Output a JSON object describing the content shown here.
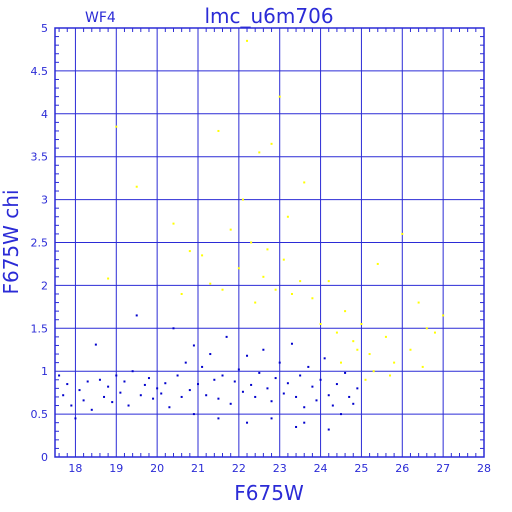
{
  "chart_data": {
    "type": "scatter",
    "title": "lmc_u6m706",
    "corner_label": "WF4",
    "xlabel": "F675W",
    "ylabel": "F675W  chi",
    "xlim": [
      17.5,
      28
    ],
    "ylim": [
      0,
      5
    ],
    "grid": true,
    "x_ticks": [
      18,
      19,
      20,
      21,
      22,
      23,
      24,
      25,
      26,
      27,
      28
    ],
    "x_tick_labels": [
      "18",
      "19",
      "20",
      "21",
      "22",
      "23",
      "24",
      "25",
      "26",
      "27",
      "28"
    ],
    "y_ticks": [
      0,
      0.5,
      1,
      1.5,
      2,
      2.5,
      3,
      3.5,
      4,
      4.5,
      5
    ],
    "y_tick_labels": [
      "0",
      "0.5",
      "1",
      "1.5",
      "2",
      "2.5",
      "3",
      "3.5",
      "4",
      "4.5",
      "5"
    ],
    "series": [
      {
        "color": "#0000cc",
        "points": [
          [
            17.6,
            0.95
          ],
          [
            17.7,
            0.72
          ],
          [
            17.8,
            0.85
          ],
          [
            17.9,
            0.6
          ],
          [
            18.0,
            0.45
          ],
          [
            18.1,
            0.78
          ],
          [
            18.2,
            0.66
          ],
          [
            18.3,
            0.88
          ],
          [
            18.4,
            0.55
          ],
          [
            18.5,
            1.31
          ],
          [
            18.6,
            0.9
          ],
          [
            18.7,
            0.7
          ],
          [
            18.8,
            0.82
          ],
          [
            18.9,
            0.64
          ],
          [
            19.0,
            0.95
          ],
          [
            19.1,
            0.75
          ],
          [
            19.2,
            0.88
          ],
          [
            19.3,
            0.6
          ],
          [
            19.4,
            1.0
          ],
          [
            19.5,
            1.65
          ],
          [
            19.6,
            0.72
          ],
          [
            19.7,
            0.84
          ],
          [
            19.8,
            0.92
          ],
          [
            19.9,
            0.68
          ],
          [
            20.0,
            0.8
          ],
          [
            20.1,
            0.74
          ],
          [
            20.2,
            0.86
          ],
          [
            20.3,
            0.58
          ],
          [
            20.4,
            1.5
          ],
          [
            20.5,
            0.95
          ],
          [
            20.6,
            0.7
          ],
          [
            20.7,
            1.1
          ],
          [
            20.8,
            0.78
          ],
          [
            20.9,
            1.3
          ],
          [
            21.0,
            0.85
          ],
          [
            21.1,
            1.05
          ],
          [
            21.2,
            0.72
          ],
          [
            21.3,
            1.2
          ],
          [
            21.4,
            0.9
          ],
          [
            21.5,
            0.68
          ],
          [
            21.6,
            0.95
          ],
          [
            21.7,
            1.4
          ],
          [
            21.8,
            0.62
          ],
          [
            21.9,
            0.88
          ],
          [
            22.0,
            1.02
          ],
          [
            22.1,
            0.76
          ],
          [
            22.2,
            1.18
          ],
          [
            22.3,
            0.84
          ],
          [
            22.4,
            0.7
          ],
          [
            22.5,
            0.98
          ],
          [
            22.6,
            1.25
          ],
          [
            22.7,
            0.8
          ],
          [
            22.8,
            0.65
          ],
          [
            22.9,
            0.92
          ],
          [
            23.0,
            1.1
          ],
          [
            23.1,
            0.74
          ],
          [
            23.2,
            0.86
          ],
          [
            23.3,
            1.32
          ],
          [
            23.4,
            0.7
          ],
          [
            23.5,
            0.95
          ],
          [
            23.6,
            0.58
          ],
          [
            23.7,
            1.05
          ],
          [
            23.8,
            0.82
          ],
          [
            23.9,
            0.66
          ],
          [
            24.0,
            0.9
          ],
          [
            24.1,
            1.15
          ],
          [
            24.2,
            0.72
          ],
          [
            24.3,
            0.6
          ],
          [
            24.4,
            0.85
          ],
          [
            24.5,
            0.5
          ],
          [
            24.6,
            0.98
          ],
          [
            24.7,
            0.7
          ],
          [
            24.8,
            0.62
          ],
          [
            24.9,
            0.8
          ],
          [
            22.2,
            0.4
          ],
          [
            23.4,
            0.35
          ],
          [
            24.2,
            0.32
          ],
          [
            21.5,
            0.45
          ],
          [
            20.9,
            0.5
          ],
          [
            22.8,
            0.45
          ],
          [
            23.6,
            0.4
          ]
        ]
      },
      {
        "color": "#ffff00",
        "points": [
          [
            18.8,
            2.08
          ],
          [
            19.0,
            3.85
          ],
          [
            19.5,
            3.15
          ],
          [
            20.4,
            2.72
          ],
          [
            20.6,
            1.9
          ],
          [
            20.8,
            2.4
          ],
          [
            21.1,
            2.35
          ],
          [
            21.3,
            2.02
          ],
          [
            21.5,
            3.8
          ],
          [
            21.6,
            1.95
          ],
          [
            21.8,
            2.65
          ],
          [
            22.0,
            2.2
          ],
          [
            22.1,
            3.0
          ],
          [
            22.2,
            4.85
          ],
          [
            22.3,
            2.5
          ],
          [
            22.4,
            1.8
          ],
          [
            22.5,
            3.55
          ],
          [
            22.6,
            2.1
          ],
          [
            22.7,
            2.42
          ],
          [
            22.8,
            3.65
          ],
          [
            22.9,
            1.95
          ],
          [
            23.0,
            4.2
          ],
          [
            23.1,
            2.3
          ],
          [
            23.2,
            2.8
          ],
          [
            23.3,
            1.9
          ],
          [
            23.5,
            2.05
          ],
          [
            23.6,
            3.2
          ],
          [
            23.8,
            1.85
          ],
          [
            24.0,
            1.55
          ],
          [
            24.2,
            2.05
          ],
          [
            24.4,
            1.45
          ],
          [
            24.6,
            1.7
          ],
          [
            24.8,
            1.35
          ],
          [
            25.0,
            1.55
          ],
          [
            25.2,
            1.2
          ],
          [
            25.4,
            2.25
          ],
          [
            25.6,
            1.4
          ],
          [
            25.8,
            1.1
          ],
          [
            26.0,
            2.6
          ],
          [
            26.2,
            1.25
          ],
          [
            26.4,
            1.8
          ],
          [
            26.6,
            1.5
          ],
          [
            26.8,
            1.45
          ],
          [
            27.0,
            1.65
          ],
          [
            25.3,
            1.0
          ],
          [
            25.7,
            0.95
          ],
          [
            24.9,
            1.25
          ],
          [
            24.5,
            1.1
          ],
          [
            26.5,
            1.05
          ],
          [
            25.1,
            0.9
          ]
        ]
      }
    ]
  }
}
